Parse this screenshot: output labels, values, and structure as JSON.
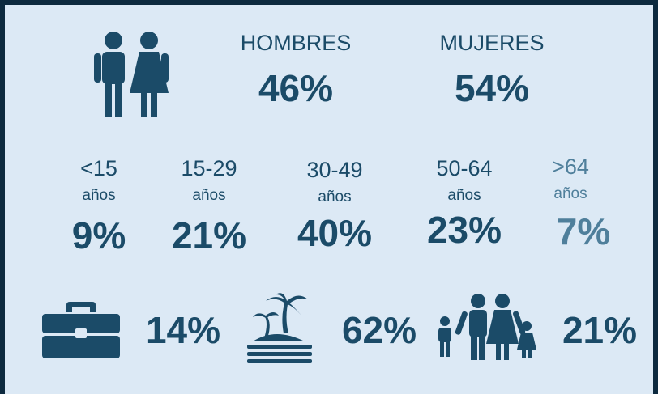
{
  "gender": [
    {
      "label": "HOMBRES",
      "value": "46%"
    },
    {
      "label": "MUJERES",
      "value": "54%"
    }
  ],
  "age_groups": [
    {
      "range": "<15",
      "unit": "años",
      "value": "9%"
    },
    {
      "range": "15-29",
      "unit": "años",
      "value": "21%"
    },
    {
      "range": "30-49",
      "unit": "años",
      "value": "40%"
    },
    {
      "range": "50-64",
      "unit": "años",
      "value": "23%"
    },
    {
      "range": ">64",
      "unit": "años",
      "value": "7%"
    }
  ],
  "activities": [
    {
      "value": "14%"
    },
    {
      "value": "62%"
    },
    {
      "value": "21%"
    }
  ]
}
